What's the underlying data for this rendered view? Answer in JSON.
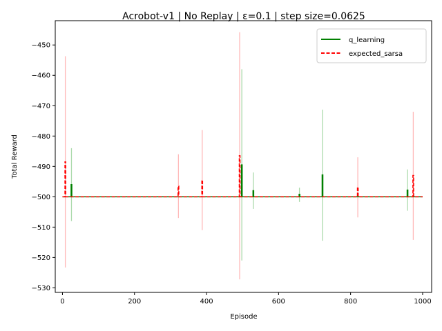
{
  "chart_data": {
    "type": "line",
    "title": "Acrobot-v1 | No Replay | ε=0.1 | step size=0.0625",
    "xlabel": "Episode",
    "ylabel": "Total Reward",
    "xlim": [
      -20,
      1025
    ],
    "ylim": [
      -531.5,
      -442
    ],
    "xticks": [
      0,
      200,
      400,
      600,
      800,
      1000
    ],
    "yticks": [
      -530,
      -520,
      -510,
      -500,
      -490,
      -480,
      -470,
      -460,
      -450
    ],
    "grid": false,
    "legend_position": "top-right",
    "baseline": -500,
    "x_range": [
      0,
      1000
    ],
    "series": [
      {
        "name": "q_learning",
        "color": "#008000",
        "band_color": "#66bb66",
        "style": "solid",
        "spikes": [
          {
            "x": 25,
            "y": -496,
            "lo": -508,
            "hi": -484
          },
          {
            "x": 498,
            "y": -489.5,
            "lo": -521,
            "hi": -458
          },
          {
            "x": 530,
            "y": -498,
            "lo": -504,
            "hi": -492
          },
          {
            "x": 658,
            "y": -499.2,
            "lo": -501.7,
            "hi": -497
          },
          {
            "x": 722,
            "y": -492.8,
            "lo": -514.5,
            "hi": -471.3
          },
          {
            "x": 958,
            "y": -497.8,
            "lo": -504.6,
            "hi": -491
          }
        ]
      },
      {
        "name": "expected_sarsa",
        "color": "#ff0000",
        "band_color": "#ff8080",
        "style": "dashed",
        "spikes": [
          {
            "x": 8,
            "y": -488.5,
            "lo": -523.3,
            "hi": -453.7
          },
          {
            "x": 322,
            "y": -496.5,
            "lo": -507,
            "hi": -486
          },
          {
            "x": 388,
            "y": -494.5,
            "lo": -511,
            "hi": -478
          },
          {
            "x": 492,
            "y": -486.5,
            "lo": -527.2,
            "hi": -445.8
          },
          {
            "x": 820,
            "y": -496.8,
            "lo": -506.8,
            "hi": -487
          },
          {
            "x": 974,
            "y": -493,
            "lo": -514.2,
            "hi": -472
          }
        ]
      }
    ]
  }
}
